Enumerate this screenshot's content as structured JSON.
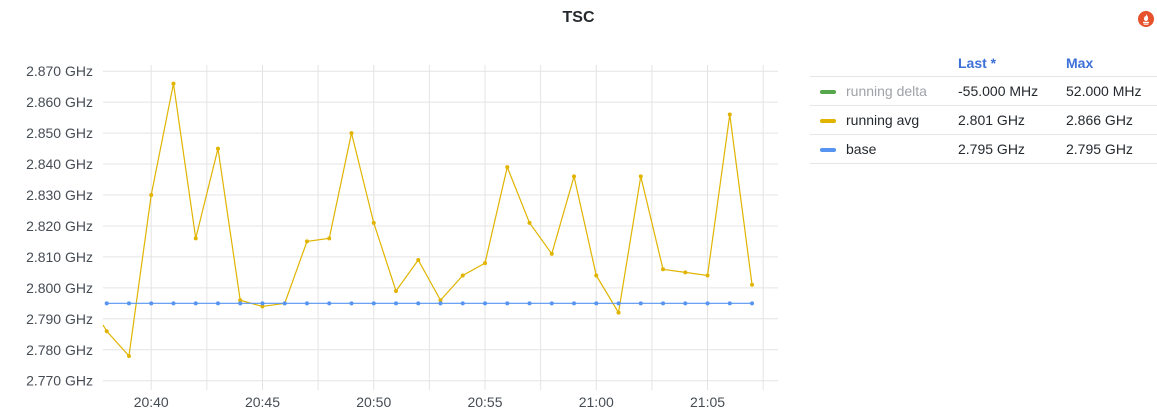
{
  "panel": {
    "title": "TSC",
    "source_icon": "prometheus-flame-icon",
    "source_icon_color": "#e6522c"
  },
  "legend": {
    "headers": {
      "last": "Last *",
      "max": "Max"
    },
    "rows": [
      {
        "name": "running delta",
        "last": "-55.000 MHz",
        "max": "52.000 MHz",
        "color": "#56a64b",
        "dimmed": true
      },
      {
        "name": "running avg",
        "last": "2.801 GHz",
        "max": "2.866 GHz",
        "color": "#e0b400",
        "dimmed": false
      },
      {
        "name": "base",
        "last": "2.795 GHz",
        "max": "2.795 GHz",
        "color": "#5794f2",
        "dimmed": false
      }
    ]
  },
  "chart_data": {
    "type": "line",
    "title": "TSC",
    "x_unit": "time (HH:MM)",
    "y_unit": "GHz",
    "x_ticks": [
      "20:40",
      "20:45",
      "20:50",
      "20:55",
      "21:00",
      "21:05"
    ],
    "y_ticks": [
      "2.770 GHz",
      "2.780 GHz",
      "2.790 GHz",
      "2.800 GHz",
      "2.810 GHz",
      "2.820 GHz",
      "2.830 GHz",
      "2.840 GHz",
      "2.850 GHz",
      "2.860 GHz",
      "2.870 GHz"
    ],
    "ylim": [
      2.767,
      2.872
    ],
    "xlim": [
      "20:37:50",
      "21:08:10"
    ],
    "grid": true,
    "legend_position": "right",
    "x": [
      "20:38",
      "20:39",
      "20:40",
      "20:41",
      "20:42",
      "20:43",
      "20:44",
      "20:45",
      "20:46",
      "20:47",
      "20:48",
      "20:49",
      "20:50",
      "20:51",
      "20:52",
      "20:53",
      "20:54",
      "20:55",
      "20:56",
      "20:57",
      "20:58",
      "20:59",
      "21:00",
      "21:01",
      "21:02",
      "21:03",
      "21:04",
      "21:05",
      "21:06",
      "21:07"
    ],
    "series": [
      {
        "name": "running avg",
        "color": "#e0b400",
        "lead_in": 2.788,
        "values": [
          2.786,
          2.778,
          2.83,
          2.866,
          2.816,
          2.845,
          2.796,
          2.794,
          2.795,
          2.815,
          2.816,
          2.85,
          2.821,
          2.799,
          2.809,
          2.796,
          2.804,
          2.808,
          2.839,
          2.821,
          2.811,
          2.836,
          2.804,
          2.792,
          2.836,
          2.806,
          2.805,
          2.804,
          2.856,
          2.801
        ]
      },
      {
        "name": "base",
        "color": "#5794f2",
        "values": [
          2.795,
          2.795,
          2.795,
          2.795,
          2.795,
          2.795,
          2.795,
          2.795,
          2.795,
          2.795,
          2.795,
          2.795,
          2.795,
          2.795,
          2.795,
          2.795,
          2.795,
          2.795,
          2.795,
          2.795,
          2.795,
          2.795,
          2.795,
          2.795,
          2.795,
          2.795,
          2.795,
          2.795,
          2.795,
          2.795
        ]
      }
    ]
  }
}
